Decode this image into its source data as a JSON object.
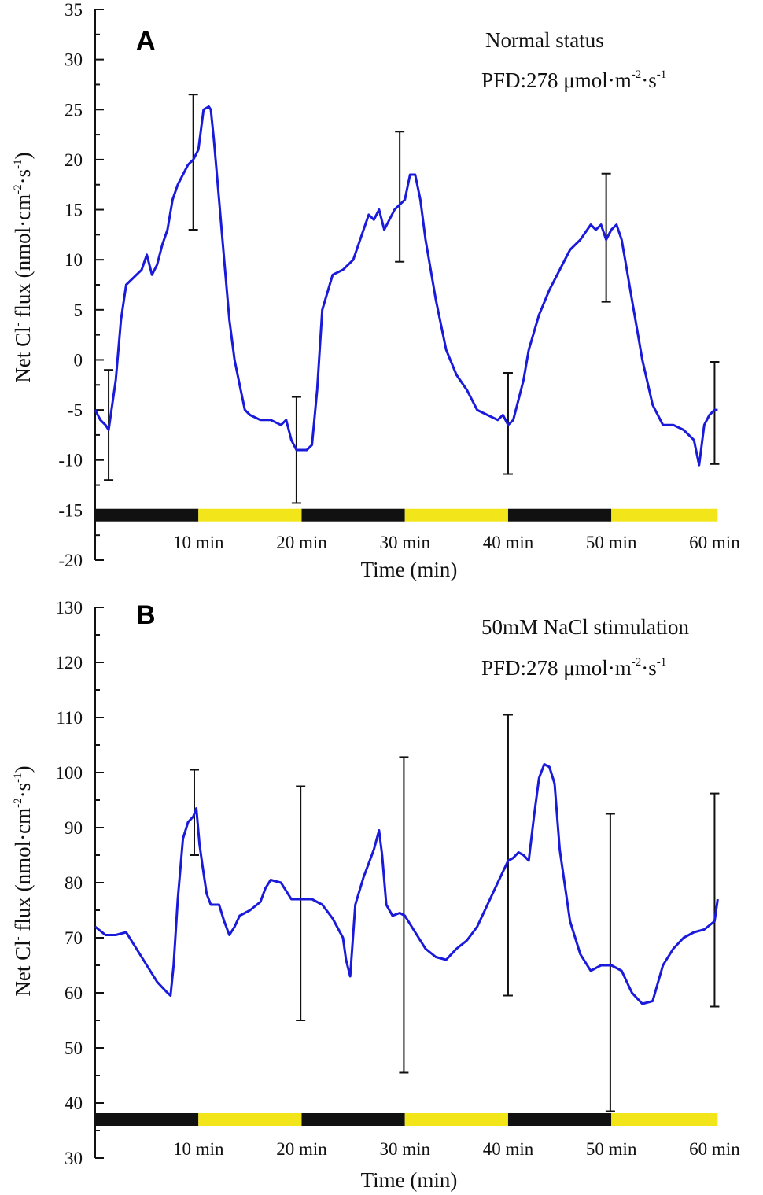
{
  "colors": {
    "trace": "#1a1adb",
    "dark_period": "#111111",
    "light_period": "#f2e61a",
    "axis": "#111111",
    "error_bar": "#111111"
  },
  "chart_data": [
    {
      "type": "line",
      "panel": "A",
      "annotation_line1": "Normal status",
      "annotation_line2_prefix": "PFD:278 μmol·m",
      "annotation_sup1": "-2",
      "annotation_mid": "·s",
      "annotation_sup2": "-1",
      "ylabel_prefix": "Net Cl",
      "ylabel_sup1": "-",
      "ylabel_mid": " flux (nmol·cm",
      "ylabel_sup2": "-2",
      "ylabel_mid2": "·s",
      "ylabel_sup3": "-1",
      "ylabel_suffix": ")",
      "xlabel": "Time (min)",
      "xlim": [
        0,
        60.5
      ],
      "ylim": [
        -20,
        35
      ],
      "yticks": [
        -20,
        -15,
        -10,
        -5,
        0,
        5,
        10,
        15,
        20,
        25,
        30,
        35
      ],
      "ytick_labels": [
        "-20",
        "-15",
        "-10",
        "-5",
        "0",
        "5",
        "10",
        "15",
        "20",
        "25",
        "30",
        "35"
      ],
      "xtick_positions": [
        10,
        20,
        30,
        40,
        50,
        60
      ],
      "xtick_labels": [
        "10 min",
        "20 min",
        "30 min",
        "40 min",
        "50 min",
        "60 min"
      ],
      "period_bar_y": -15.5,
      "periods": [
        {
          "start": 0,
          "end": 10,
          "type": "dark"
        },
        {
          "start": 10,
          "end": 20,
          "type": "light"
        },
        {
          "start": 20,
          "end": 30,
          "type": "dark"
        },
        {
          "start": 30,
          "end": 40,
          "type": "light"
        },
        {
          "start": 40,
          "end": 50,
          "type": "dark"
        },
        {
          "start": 50,
          "end": 60.3,
          "type": "light"
        }
      ],
      "series": [
        {
          "name": "Net Cl- flux",
          "x": [
            0,
            0.5,
            1.0,
            1.3,
            2.0,
            2.5,
            3.0,
            4.0,
            4.5,
            5.0,
            5.5,
            6.0,
            6.5,
            7.0,
            7.5,
            8.0,
            9.0,
            9.5,
            10.0,
            10.5,
            11.0,
            11.2,
            11.5,
            12.0,
            12.5,
            13.0,
            13.5,
            14.0,
            14.5,
            15.0,
            16.0,
            17.0,
            18.0,
            18.5,
            19.0,
            19.5,
            20.0,
            20.5,
            21.0,
            21.5,
            22.0,
            23.0,
            24.0,
            25.0,
            26.0,
            26.5,
            27.0,
            27.5,
            28.0,
            29.0,
            30.0,
            30.5,
            31.0,
            31.5,
            32.0,
            33.0,
            34.0,
            35.0,
            36.0,
            37.0,
            38.0,
            39.0,
            39.5,
            40.0,
            40.5,
            41.0,
            41.5,
            42.0,
            43.0,
            44.0,
            45.0,
            46.0,
            47.0,
            48.0,
            48.5,
            49.0,
            49.5,
            50.0,
            50.5,
            51.0,
            51.5,
            52.0,
            53.0,
            54.0,
            55.0,
            56.0,
            57.0,
            58.0,
            58.5,
            59.0,
            59.5,
            60.0,
            60.3
          ],
          "y": [
            -5,
            -6,
            -6.5,
            -7,
            -2,
            4,
            7.5,
            8.5,
            9,
            10.5,
            8.5,
            9.5,
            11.5,
            13,
            16,
            17.5,
            19.5,
            20,
            21,
            25,
            25.3,
            25,
            22,
            16,
            10,
            4,
            0,
            -2.5,
            -5,
            -5.5,
            -6,
            -6,
            -6.5,
            -6,
            -8,
            -9,
            -9,
            -9,
            -8.5,
            -3,
            5,
            8.5,
            9,
            10,
            13,
            14.5,
            14,
            15,
            13,
            15,
            16,
            18.5,
            18.5,
            16,
            12,
            6,
            1,
            -1.5,
            -3,
            -5,
            -5.5,
            -6,
            -5.5,
            -6.5,
            -6,
            -4,
            -2,
            1,
            4.5,
            7,
            9,
            11,
            12,
            13.5,
            13,
            13.5,
            12,
            13,
            13.5,
            12,
            9,
            6,
            0,
            -4.5,
            -6.5,
            -6.5,
            -7,
            -8,
            -10.5,
            -6.5,
            -5.5,
            -5,
            -5
          ]
        }
      ],
      "error_bars": [
        {
          "x": 1.3,
          "low": -12,
          "high": -1
        },
        {
          "x": 9.5,
          "low": 13,
          "high": 26.5
        },
        {
          "x": 19.5,
          "low": -14.3,
          "high": -3.7
        },
        {
          "x": 29.5,
          "low": 9.8,
          "high": 22.8
        },
        {
          "x": 40.0,
          "low": -11.4,
          "high": -1.3
        },
        {
          "x": 49.5,
          "low": 5.8,
          "high": 18.6
        },
        {
          "x": 60.0,
          "low": -10.4,
          "high": -0.2
        }
      ]
    },
    {
      "type": "line",
      "panel": "B",
      "annotation_line1": "50mM NaCl stimulation",
      "annotation_line2_prefix": "PFD:278 μmol·m",
      "annotation_sup1": "-2",
      "annotation_mid": "·s",
      "annotation_sup2": "-1",
      "ylabel_prefix": "Net Cl",
      "ylabel_sup1": "-",
      "ylabel_mid": " flux (nmol·cm",
      "ylabel_sup2": "-2",
      "ylabel_mid2": "·s",
      "ylabel_sup3": "-1",
      "ylabel_suffix": ")",
      "xlabel": "Time (min)",
      "xlim": [
        0,
        60.5
      ],
      "ylim": [
        30,
        130
      ],
      "yticks": [
        30,
        40,
        50,
        60,
        70,
        80,
        90,
        100,
        110,
        120,
        130
      ],
      "ytick_labels": [
        "30",
        "40",
        "50",
        "60",
        "70",
        "80",
        "90",
        "100",
        "110",
        "120",
        "130"
      ],
      "xtick_positions": [
        10,
        20,
        30,
        40,
        50,
        60
      ],
      "xtick_labels": [
        "10 min",
        "20 min",
        "30 min",
        "40 min",
        "50 min",
        "60 min"
      ],
      "period_bar_y": 37,
      "periods": [
        {
          "start": 0,
          "end": 10,
          "type": "dark"
        },
        {
          "start": 10,
          "end": 20,
          "type": "light"
        },
        {
          "start": 20,
          "end": 30,
          "type": "dark"
        },
        {
          "start": 30,
          "end": 40,
          "type": "light"
        },
        {
          "start": 40,
          "end": 50,
          "type": "dark"
        },
        {
          "start": 50,
          "end": 60.3,
          "type": "light"
        }
      ],
      "series": [
        {
          "name": "Net Cl- flux",
          "x": [
            0,
            1,
            2,
            3,
            4,
            5,
            6,
            6.5,
            7,
            7.3,
            7.6,
            8.0,
            8.5,
            9.0,
            9.5,
            9.8,
            10.1,
            10.4,
            10.8,
            11.2,
            12.0,
            12.5,
            13.0,
            13.5,
            14.0,
            15.0,
            16.0,
            16.5,
            17.0,
            18.0,
            19.0,
            20.0,
            21.0,
            22.0,
            23.0,
            24.0,
            24.3,
            24.7,
            25.2,
            26.0,
            27.0,
            27.5,
            27.8,
            28.2,
            28.8,
            29.5,
            30.0,
            31.0,
            32.0,
            33.0,
            34.0,
            35.0,
            36.0,
            37.0,
            38.0,
            39.0,
            40.0,
            40.5,
            41.0,
            41.5,
            42.0,
            42.5,
            43.0,
            43.5,
            44.0,
            44.5,
            45.0,
            46.0,
            47.0,
            48.0,
            49.0,
            50.0,
            51.0,
            52.0,
            53.0,
            54.0,
            55.0,
            56.0,
            57.0,
            58.0,
            59.0,
            60.0,
            60.3
          ],
          "y": [
            72,
            70.5,
            70.5,
            71,
            68,
            65,
            62,
            61,
            60,
            59.5,
            65,
            77,
            88,
            91,
            92,
            93.5,
            87,
            83,
            78,
            76,
            76,
            73,
            70.5,
            72,
            74,
            75,
            76.5,
            79,
            80.5,
            80,
            77,
            77,
            77,
            76,
            73.5,
            70,
            66,
            63,
            76,
            81,
            86,
            89.5,
            85,
            76,
            74,
            74.5,
            74,
            71,
            68,
            66.5,
            66,
            68,
            69.5,
            72,
            76,
            80,
            84,
            84.5,
            85.5,
            85,
            84,
            92,
            99,
            101.5,
            101,
            98,
            86,
            73,
            67,
            64,
            65,
            65,
            64,
            60,
            58,
            58.5,
            65,
            68,
            70,
            71,
            71.5,
            73,
            77
          ]
        }
      ],
      "error_bars": [
        {
          "x": 9.6,
          "low": 85,
          "high": 100.5
        },
        {
          "x": 19.9,
          "low": 55,
          "high": 97.5
        },
        {
          "x": 29.9,
          "low": 45.5,
          "high": 102.8
        },
        {
          "x": 40.0,
          "low": 59.5,
          "high": 110.5
        },
        {
          "x": 49.9,
          "low": 38.5,
          "high": 92.5
        },
        {
          "x": 60.0,
          "low": 57.5,
          "high": 96.2
        }
      ]
    }
  ]
}
